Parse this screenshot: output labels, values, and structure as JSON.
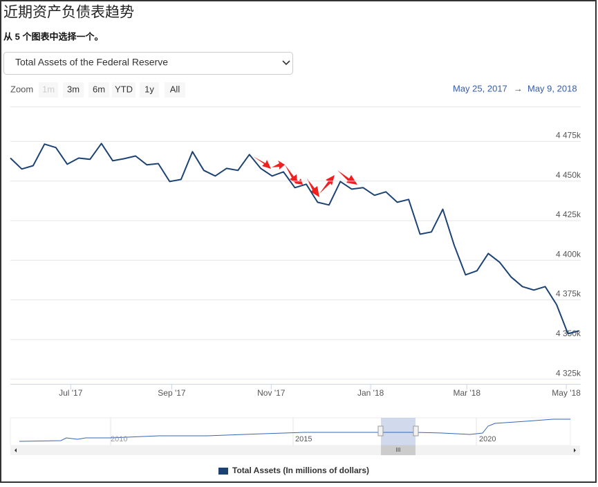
{
  "header": {
    "title": "近期资产负债表趋势",
    "subtitle": "从 5 个图表中选择一个。",
    "select": "Total Assets of the Federal Reserve"
  },
  "range_selector": {
    "zoom": "Zoom",
    "buttons": [
      "1m",
      "3m",
      "6m",
      "YTD",
      "1y",
      "All"
    ],
    "disabled": [
      "1m"
    ],
    "from": "May 25, 2017",
    "arrow": "→",
    "to": "May 9, 2018"
  },
  "navigator": {
    "labels": [
      "2010",
      "2015",
      "2020"
    ],
    "scroll": "III"
  },
  "chart_data": {
    "type": "line",
    "xlim": [
      "2017-05-25",
      "2018-05-09"
    ],
    "xticks": [
      {
        "value": "2017-07-01",
        "label": "Jul '17"
      },
      {
        "value": "2017-09-01",
        "label": "Sep '17"
      },
      {
        "value": "2017-11-01",
        "label": "Nov '17"
      },
      {
        "value": "2018-01-01",
        "label": "Jan '18"
      },
      {
        "value": "2018-03-01",
        "label": "Mar '18"
      },
      {
        "value": "2018-05-01",
        "label": "May '18"
      }
    ],
    "ylim": [
      4322000,
      4497000
    ],
    "yticks": [
      {
        "value": 4325000,
        "label": "4 325k"
      },
      {
        "value": 4350000,
        "label": "4 350k"
      },
      {
        "value": 4375000,
        "label": "4 375k"
      },
      {
        "value": 4400000,
        "label": "4 400k"
      },
      {
        "value": 4425000,
        "label": "4 425k"
      },
      {
        "value": 4450000,
        "label": "4 450k"
      },
      {
        "value": 4475000,
        "label": "4 475k"
      }
    ],
    "grid": true,
    "series": [
      {
        "name": "Total Assets (In millions of dollars)",
        "color": "#1c4273",
        "values": [
          4464500,
          4457600,
          4459700,
          4473300,
          4471100,
          4460600,
          4464500,
          4463700,
          4473700,
          4462800,
          4464100,
          4465800,
          4460200,
          4461000,
          4449700,
          4451000,
          4468500,
          4456700,
          4453200,
          4458000,
          4456700,
          4466700,
          4458000,
          4453200,
          4455800,
          4445800,
          4448000,
          4436600,
          4434900,
          4449700,
          4444900,
          4445800,
          4441000,
          4443200,
          4436600,
          4438400,
          4416500,
          4417900,
          4432200,
          4409600,
          4390800,
          4393400,
          4404300,
          4398700,
          4389500,
          4383400,
          4381200,
          4383400,
          4372000,
          4353700,
          4355500
        ]
      }
    ]
  }
}
